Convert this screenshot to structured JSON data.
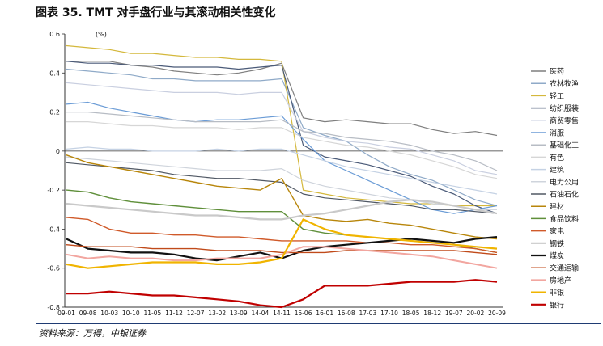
{
  "figure": {
    "title": "图表 35. TMT 对手盘行业与其滚动相关性变化",
    "source": "资料来源：万得，中银证券"
  },
  "chart_data": {
    "type": "line",
    "unit_label": "(%)",
    "ylim": [
      -0.8,
      0.6
    ],
    "yticks": [
      "0.6",
      "0.4",
      "0.2",
      "0",
      "-0.2",
      "-0.4",
      "-0.6",
      "-0.8"
    ],
    "x_tick_labels": [
      "09-01",
      "09-08",
      "10-03",
      "10-10",
      "11-05",
      "11-12",
      "12-07",
      "13-02",
      "13-09",
      "14-04",
      "14-11",
      "15-06",
      "16-01",
      "16-08",
      "17-03",
      "17-10",
      "18-05",
      "18-12",
      "19-07",
      "20-02",
      "20-09"
    ],
    "grid": false,
    "legend_position": "right",
    "series": [
      {
        "name": "医药",
        "color": "#7f7f7f",
        "width": 1.2,
        "values": [
          0.46,
          0.46,
          0.46,
          0.44,
          0.43,
          0.41,
          0.4,
          0.39,
          0.4,
          0.42,
          0.45,
          0.17,
          0.15,
          0.16,
          0.15,
          0.14,
          0.14,
          0.11,
          0.09,
          0.1,
          0.08
        ]
      },
      {
        "name": "农林牧渔",
        "color": "#8faac8",
        "width": 1.2,
        "values": [
          0.42,
          0.41,
          0.4,
          0.39,
          0.37,
          0.37,
          0.36,
          0.36,
          0.36,
          0.36,
          0.37,
          0.12,
          0.08,
          0.05,
          -0.02,
          -0.08,
          -0.12,
          -0.15,
          -0.2,
          -0.25,
          -0.28
        ]
      },
      {
        "name": "轻工",
        "color": "#d4b83c",
        "width": 1.2,
        "values": [
          0.54,
          0.53,
          0.52,
          0.5,
          0.5,
          0.49,
          0.48,
          0.48,
          0.47,
          0.47,
          0.46,
          -0.2,
          -0.22,
          -0.24,
          -0.25,
          -0.26,
          -0.27,
          -0.27,
          -0.28,
          -0.28,
          -0.28
        ]
      },
      {
        "name": "纺织服装",
        "color": "#4a5a78",
        "width": 1.2,
        "values": [
          0.46,
          0.45,
          0.45,
          0.44,
          0.44,
          0.43,
          0.43,
          0.43,
          0.42,
          0.43,
          0.44,
          0.03,
          -0.03,
          -0.05,
          -0.07,
          -0.1,
          -0.13,
          -0.18,
          -0.22,
          -0.28,
          -0.32
        ]
      },
      {
        "name": "商贸零售",
        "color": "#c9cfe0",
        "width": 1.2,
        "values": [
          0.35,
          0.34,
          0.33,
          0.32,
          0.31,
          0.3,
          0.3,
          0.3,
          0.29,
          0.3,
          0.3,
          0.1,
          0.07,
          0.05,
          0.04,
          0.02,
          0.01,
          -0.02,
          -0.05,
          -0.1,
          -0.12
        ]
      },
      {
        "name": "消服",
        "color": "#6b9cd6",
        "width": 1.2,
        "values": [
          0.24,
          0.25,
          0.22,
          0.2,
          0.18,
          0.16,
          0.15,
          0.16,
          0.16,
          0.17,
          0.18,
          0.06,
          -0.05,
          -0.1,
          -0.15,
          -0.2,
          -0.25,
          -0.3,
          -0.32,
          -0.3,
          -0.28
        ]
      },
      {
        "name": "基础化工",
        "color": "#b7bcc4",
        "width": 1.2,
        "values": [
          0.2,
          0.2,
          0.19,
          0.18,
          0.17,
          0.16,
          0.15,
          0.15,
          0.15,
          0.15,
          0.16,
          0.1,
          0.09,
          0.07,
          0.06,
          0.05,
          0.03,
          0.0,
          -0.02,
          -0.05,
          -0.1
        ]
      },
      {
        "name": "有色",
        "color": "#d6d6d6",
        "width": 1.2,
        "values": [
          0.15,
          0.15,
          0.14,
          0.13,
          0.13,
          0.12,
          0.12,
          0.12,
          0.11,
          0.12,
          0.12,
          0.07,
          0.05,
          0.03,
          0.02,
          0.0,
          -0.02,
          -0.05,
          -0.08,
          -0.12,
          -0.14
        ]
      },
      {
        "name": "建筑",
        "color": "#c5d2e4",
        "width": 1.2,
        "values": [
          0.01,
          0.02,
          0.01,
          0.01,
          0.0,
          0.0,
          0.0,
          0.01,
          0.0,
          0.01,
          0.01,
          -0.02,
          -0.05,
          -0.08,
          -0.1,
          -0.12,
          -0.14,
          -0.16,
          -0.18,
          -0.2,
          -0.22
        ]
      },
      {
        "name": "电力公用",
        "color": "#cfd4dc",
        "width": 1.2,
        "values": [
          -0.03,
          -0.04,
          -0.05,
          -0.06,
          -0.07,
          -0.08,
          -0.09,
          -0.1,
          -0.1,
          -0.1,
          -0.09,
          -0.15,
          -0.18,
          -0.2,
          -0.22,
          -0.24,
          -0.25,
          -0.27,
          -0.28,
          -0.3,
          -0.3
        ]
      },
      {
        "name": "石油石化",
        "color": "#505864",
        "width": 1.2,
        "values": [
          -0.06,
          -0.07,
          -0.08,
          -0.09,
          -0.1,
          -0.12,
          -0.13,
          -0.14,
          -0.14,
          -0.15,
          -0.16,
          -0.22,
          -0.24,
          -0.25,
          -0.26,
          -0.27,
          -0.28,
          -0.3,
          -0.3,
          -0.31,
          -0.32
        ]
      },
      {
        "name": "建材",
        "color": "#b8860b",
        "width": 1.4,
        "values": [
          -0.02,
          -0.06,
          -0.08,
          -0.1,
          -0.12,
          -0.14,
          -0.16,
          -0.18,
          -0.19,
          -0.2,
          -0.14,
          -0.33,
          -0.35,
          -0.36,
          -0.35,
          -0.37,
          -0.38,
          -0.4,
          -0.42,
          -0.44,
          -0.45
        ]
      },
      {
        "name": "食品饮料",
        "color": "#5f8f3a",
        "width": 1.4,
        "values": [
          -0.2,
          -0.21,
          -0.24,
          -0.26,
          -0.27,
          -0.28,
          -0.29,
          -0.3,
          -0.31,
          -0.31,
          -0.31,
          -0.4,
          -0.42,
          -0.43,
          -0.44,
          -0.45,
          -0.46,
          -0.47,
          -0.48,
          -0.5,
          -0.52
        ]
      },
      {
        "name": "家电",
        "color": "#d05a2a",
        "width": 1.4,
        "values": [
          -0.34,
          -0.35,
          -0.4,
          -0.42,
          -0.42,
          -0.43,
          -0.43,
          -0.44,
          -0.44,
          -0.45,
          -0.46,
          -0.46,
          -0.46,
          -0.46,
          -0.47,
          -0.47,
          -0.48,
          -0.48,
          -0.49,
          -0.5,
          -0.52
        ]
      },
      {
        "name": "钢铁",
        "color": "#c9c9c9",
        "width": 2.2,
        "values": [
          -0.27,
          -0.28,
          -0.29,
          -0.3,
          -0.31,
          -0.32,
          -0.33,
          -0.33,
          -0.34,
          -0.35,
          -0.35,
          -0.33,
          -0.32,
          -0.3,
          -0.28,
          -0.26,
          -0.25,
          -0.26,
          -0.28,
          -0.3,
          -0.32
        ]
      },
      {
        "name": "煤炭",
        "color": "#111111",
        "width": 2.2,
        "values": [
          -0.45,
          -0.5,
          -0.51,
          -0.52,
          -0.52,
          -0.53,
          -0.55,
          -0.56,
          -0.54,
          -0.52,
          -0.55,
          -0.51,
          -0.49,
          -0.48,
          -0.47,
          -0.46,
          -0.45,
          -0.46,
          -0.47,
          -0.45,
          -0.44
        ]
      },
      {
        "name": "交通运输",
        "color": "#c04a1a",
        "width": 1.4,
        "values": [
          -0.48,
          -0.49,
          -0.49,
          -0.49,
          -0.5,
          -0.5,
          -0.5,
          -0.51,
          -0.51,
          -0.51,
          -0.52,
          -0.52,
          -0.52,
          -0.51,
          -0.51,
          -0.51,
          -0.51,
          -0.51,
          -0.51,
          -0.52,
          -0.53
        ]
      },
      {
        "name": "房地产",
        "color": "#f2a6a0",
        "width": 2.0,
        "values": [
          -0.53,
          -0.55,
          -0.54,
          -0.55,
          -0.55,
          -0.56,
          -0.56,
          -0.55,
          -0.55,
          -0.55,
          -0.53,
          -0.49,
          -0.49,
          -0.5,
          -0.51,
          -0.52,
          -0.53,
          -0.54,
          -0.56,
          -0.58,
          -0.6
        ]
      },
      {
        "name": "非银",
        "color": "#f0b400",
        "width": 2.2,
        "values": [
          -0.58,
          -0.6,
          -0.59,
          -0.58,
          -0.57,
          -0.57,
          -0.57,
          -0.58,
          -0.58,
          -0.57,
          -0.55,
          -0.35,
          -0.4,
          -0.43,
          -0.44,
          -0.45,
          -0.46,
          -0.47,
          -0.48,
          -0.49,
          -0.5
        ]
      },
      {
        "name": "银行",
        "color": "#c00000",
        "width": 2.2,
        "values": [
          -0.73,
          -0.73,
          -0.72,
          -0.73,
          -0.74,
          -0.74,
          -0.75,
          -0.76,
          -0.77,
          -0.79,
          -0.8,
          -0.76,
          -0.69,
          -0.69,
          -0.69,
          -0.68,
          -0.67,
          -0.67,
          -0.67,
          -0.66,
          -0.67
        ]
      }
    ]
  }
}
